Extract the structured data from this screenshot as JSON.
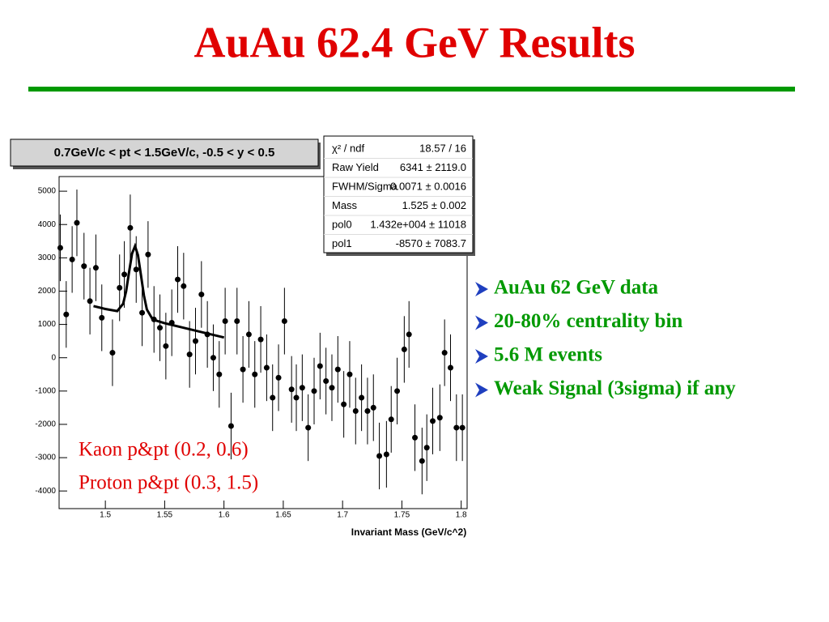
{
  "title": "AuAu 62.4 GeV Results",
  "bullets": [
    "AuAu 62 GeV data",
    "20-80% centrality bin",
    "5.6 M events",
    "Weak Signal (3sigma) if any"
  ],
  "chart_data": {
    "type": "scatter",
    "title": "0.7GeV/c < pt < 1.5GeV/c, -0.5 < y < 0.5",
    "x_label": "Invariant Mass (GeV/c^2)",
    "annotations": [
      "Kaon p&pt (0.2, 0.6)",
      "Proton p&pt (0.3, 1.5)"
    ],
    "stats": [
      {
        "label": "χ² / ndf",
        "value": "18.57 / 16"
      },
      {
        "label": "Raw Yield",
        "value": "6341 ± 2119.0"
      },
      {
        "label": "FWHM/Sigma",
        "value": "0.0071 ± 0.0016"
      },
      {
        "label": "Mass",
        "value": "1.525 ± 0.002"
      },
      {
        "label": "pol0",
        "value": "1.432e+004  ± 11018"
      },
      {
        "label": "pol1",
        "value": "-8570 ± 7083.7"
      }
    ],
    "xlim": [
      1.461,
      1.805
    ],
    "ylim": [
      -4530,
      5440
    ],
    "xticks": [
      1.5,
      1.55,
      1.6,
      1.65,
      1.7,
      1.75,
      1.8
    ],
    "yticks": [
      5000,
      4000,
      3000,
      2000,
      1000,
      0,
      -1000,
      -2000,
      -3000,
      -4000
    ],
    "series": [
      {
        "color": "#000000",
        "x": [
          1.462,
          1.467,
          1.472,
          1.476,
          1.482,
          1.487,
          1.492,
          1.497,
          1.506,
          1.512,
          1.516,
          1.521,
          1.526,
          1.531,
          1.536,
          1.541,
          1.546,
          1.551,
          1.556,
          1.561,
          1.566,
          1.571,
          1.576,
          1.581,
          1.586,
          1.591,
          1.596,
          1.601,
          1.606,
          1.611,
          1.616,
          1.621,
          1.626,
          1.631,
          1.636,
          1.641,
          1.646,
          1.651,
          1.657,
          1.661,
          1.666,
          1.671,
          1.676,
          1.681,
          1.686,
          1.691,
          1.696,
          1.701,
          1.706,
          1.711,
          1.716,
          1.721,
          1.726,
          1.731,
          1.737,
          1.741,
          1.746,
          1.752,
          1.756,
          1.761,
          1.767,
          1.771,
          1.776,
          1.782,
          1.786,
          1.791,
          1.796,
          1.801
        ],
        "values": [
          3300,
          1300,
          2950,
          4050,
          2750,
          1700,
          2700,
          1200,
          150,
          2100,
          2500,
          3900,
          2650,
          1350,
          3100,
          1150,
          900,
          350,
          1050,
          2350,
          2150,
          100,
          500,
          1900,
          700,
          0,
          -500,
          1100,
          -2050,
          1100,
          -350,
          700,
          -500,
          550,
          -300,
          -1200,
          -600,
          1100,
          -950,
          -1200,
          -900,
          -2100,
          -1000,
          -250,
          -700,
          -900,
          -350,
          -1400,
          -500,
          -1600,
          -1200,
          -1600,
          -1500,
          -2950,
          -2900,
          -1850,
          -1000,
          250,
          700,
          -2400,
          -3100,
          -2700,
          -1900,
          -1800,
          150,
          -300,
          -2100,
          -2100
        ],
        "errors": [
          1000,
          1000,
          1000,
          1000,
          1000,
          1000,
          1000,
          1000,
          1000,
          1000,
          1000,
          1000,
          1000,
          1000,
          1000,
          1000,
          1000,
          1000,
          1000,
          1000,
          1000,
          1000,
          1000,
          1000,
          1000,
          1000,
          1000,
          1000,
          1000,
          1000,
          1000,
          1000,
          1000,
          1000,
          1000,
          1000,
          1000,
          1000,
          1000,
          1000,
          1000,
          1000,
          1000,
          1000,
          1000,
          1000,
          1000,
          1000,
          1000,
          1000,
          1000,
          1000,
          1000,
          1000,
          1000,
          1000,
          1000,
          1000,
          1000,
          1000,
          1000,
          1000,
          1000,
          1000,
          1000,
          1000,
          1000,
          1000
        ]
      },
      {
        "type": "line",
        "color": "#000000",
        "x": [
          1.49,
          1.5,
          1.51,
          1.515,
          1.5175,
          1.52,
          1.5225,
          1.525,
          1.5275,
          1.53,
          1.5325,
          1.535,
          1.54,
          1.55,
          1.6
        ],
        "values": [
          1552,
          1465,
          1402,
          1620,
          1997,
          2567,
          3125,
          3351,
          3082,
          2482,
          1868,
          1449,
          1145,
          1037,
          608
        ]
      }
    ]
  }
}
